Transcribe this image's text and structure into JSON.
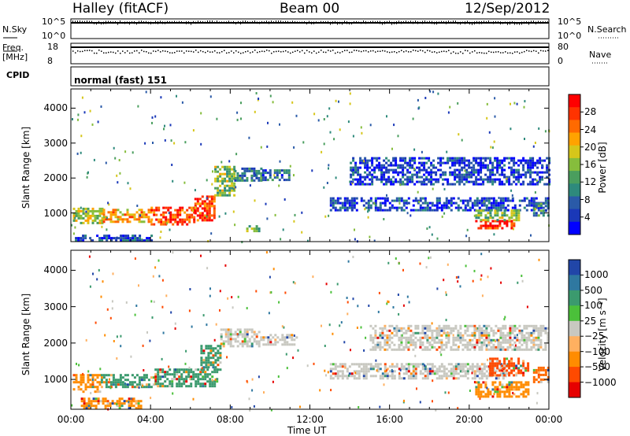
{
  "header": {
    "title": "Halley (fitACF)",
    "beam": "Beam 00",
    "date": "12/Sep/2012"
  },
  "strips": {
    "nsky_label": "N.Sky",
    "nsky_ticks": [
      "10^5",
      "10^0"
    ],
    "nsearch_label": "N.Search",
    "nsearch_ticks": [
      "10^5",
      "10^0"
    ],
    "freq_label": "Freq.",
    "freq_unit": "[MHz]",
    "freq_ticks": [
      "18",
      "8"
    ],
    "nave_label": "Nave",
    "nave_ticks": [
      "80",
      "0"
    ],
    "cpid_label": "CPID",
    "cpid_text": "normal (fast) 151"
  },
  "chart_data": [
    {
      "type": "heatmap",
      "quantity": "power",
      "xlabel": "Time UT",
      "ylabel": "Slant Range [km]",
      "xlim": [
        0,
        24
      ],
      "ylim": [
        180,
        4550
      ],
      "x_ticks": [
        "00:00",
        "04:00",
        "08:00",
        "12:00",
        "16:00",
        "20:00",
        "00:00"
      ],
      "y_ticks": [
        1000,
        2000,
        3000,
        4000
      ],
      "colorbar": {
        "label": "Power [dB]",
        "ticks": [
          "28",
          "24",
          "20",
          "16",
          "12",
          "8",
          "4"
        ],
        "colors": [
          "#ff0000",
          "#ff3300",
          "#ff6a00",
          "#ffa200",
          "#d6c61a",
          "#86bd3c",
          "#4a9e5e",
          "#2e8a7c",
          "#2a5aa8",
          "#1a38b8",
          "#0000ff"
        ]
      },
      "regions": [
        {
          "t": [
            0.1,
            1.6
          ],
          "r": [
            720,
            1150
          ],
          "level": 0.55
        },
        {
          "t": [
            1.6,
            4.0
          ],
          "r": [
            780,
            1120
          ],
          "level": 0.7
        },
        {
          "t": [
            4.0,
            6.2
          ],
          "r": [
            700,
            1180
          ],
          "level": 0.85
        },
        {
          "t": [
            6.2,
            7.2
          ],
          "r": [
            800,
            1500
          ],
          "level": 0.85
        },
        {
          "t": [
            7.2,
            8.2
          ],
          "r": [
            1500,
            2350
          ],
          "level": 0.5
        },
        {
          "t": [
            8.2,
            9.6
          ],
          "r": [
            1900,
            2300
          ],
          "level": 0.3
        },
        {
          "t": [
            9.6,
            11.0
          ],
          "r": [
            1950,
            2250
          ],
          "level": 0.25
        },
        {
          "t": [
            8.8,
            9.4
          ],
          "r": [
            500,
            650
          ],
          "level": 0.45
        },
        {
          "t": [
            13.0,
            24.0
          ],
          "r": [
            1050,
            1450
          ],
          "level": 0.15
        },
        {
          "t": [
            14.0,
            24.0
          ],
          "r": [
            1800,
            2600
          ],
          "level": 0.15
        },
        {
          "t": [
            20.3,
            22.2
          ],
          "r": [
            580,
            800
          ],
          "level": 0.9
        },
        {
          "t": [
            20.3,
            22.5
          ],
          "r": [
            820,
            1100
          ],
          "level": 0.5
        },
        {
          "t": [
            23.2,
            24.0
          ],
          "r": [
            900,
            1300
          ],
          "level": 0.3
        },
        {
          "t": [
            0.2,
            4.0
          ],
          "r": [
            230,
            380
          ],
          "level": 0.2
        }
      ]
    },
    {
      "type": "heatmap",
      "quantity": "velocity",
      "xlabel": "Time UT",
      "ylabel": "Slant Range [km]",
      "xlim": [
        0,
        24
      ],
      "ylim": [
        180,
        4550
      ],
      "x_ticks": [
        "00:00",
        "04:00",
        "08:00",
        "12:00",
        "16:00",
        "20:00",
        "00:00"
      ],
      "y_ticks": [
        1000,
        2000,
        3000,
        4000
      ],
      "colorbar": {
        "label": "Velocity [m s⁻¹]",
        "ticks": [
          "1000",
          "500",
          "100",
          "25",
          "−25",
          "−100",
          "−500",
          "−1000"
        ],
        "colors": [
          "#2146a8",
          "#2f78a0",
          "#3b9a6e",
          "#4bc03a",
          "#c8c8c0",
          "#ffb060",
          "#ff8c00",
          "#ff4a00",
          "#e60000"
        ]
      },
      "regions": [
        {
          "t": [
            0.1,
            1.5
          ],
          "r": [
            650,
            1150
          ],
          "color": "#ff8c00"
        },
        {
          "t": [
            1.5,
            4.2
          ],
          "r": [
            780,
            1150
          ],
          "color": "#3b9a6e"
        },
        {
          "t": [
            4.2,
            7.3
          ],
          "r": [
            800,
            1300
          ],
          "color": "#3b9a6e"
        },
        {
          "t": [
            6.5,
            7.5
          ],
          "r": [
            1300,
            1950
          ],
          "color": "#3b9a6e"
        },
        {
          "t": [
            7.5,
            9.5
          ],
          "r": [
            1900,
            2400
          ],
          "color": "#c8c8c0"
        },
        {
          "t": [
            9.5,
            11.3
          ],
          "r": [
            1950,
            2250
          ],
          "color": "#c8c8c0"
        },
        {
          "t": [
            13.0,
            22.0
          ],
          "r": [
            1050,
            1450
          ],
          "color": "#c8c8c0"
        },
        {
          "t": [
            15.0,
            24.0
          ],
          "r": [
            1800,
            2500
          ],
          "color": "#c8c8c0"
        },
        {
          "t": [
            20.3,
            23.0
          ],
          "r": [
            500,
            950
          ],
          "color": "#ff8c00"
        },
        {
          "t": [
            21.0,
            23.0
          ],
          "r": [
            1100,
            1600
          ],
          "color": "#ff4a00"
        },
        {
          "t": [
            23.2,
            24.0
          ],
          "r": [
            900,
            1350
          ],
          "color": "#ff6a00"
        },
        {
          "t": [
            0.5,
            3.5
          ],
          "r": [
            230,
            500
          ],
          "color": "#ff8c00"
        }
      ]
    }
  ]
}
